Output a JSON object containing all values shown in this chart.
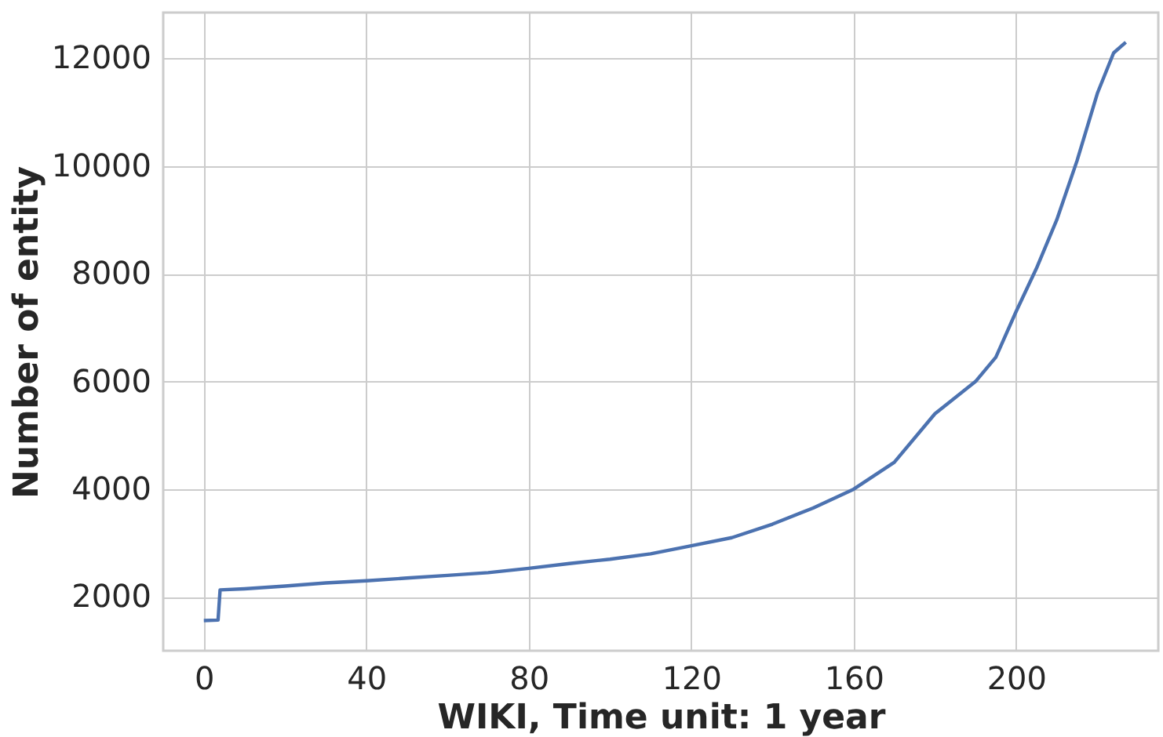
{
  "chart_data": {
    "type": "line",
    "xlabel": "WIKI, Time unit: 1 year",
    "ylabel": "Number of entity",
    "x": [
      0,
      3.5,
      4,
      10,
      20,
      30,
      40,
      50,
      60,
      70,
      80,
      90,
      100,
      110,
      120,
      130,
      140,
      150,
      160,
      170,
      180,
      190,
      195,
      200,
      205,
      210,
      215,
      220,
      224,
      227
    ],
    "series": [
      {
        "color": "#4c72b0",
        "values": [
          1560,
          1570,
          2130,
          2150,
          2200,
          2260,
          2300,
          2350,
          2400,
          2450,
          2530,
          2620,
          2700,
          2800,
          2950,
          3100,
          3350,
          3650,
          4000,
          4500,
          5400,
          6000,
          6450,
          7300,
          8100,
          9000,
          10100,
          11350,
          12100,
          12300
        ]
      }
    ],
    "xlim": [
      -10,
      235
    ],
    "ylim": [
      1000,
      12850
    ],
    "xticks": [
      0,
      40,
      80,
      120,
      160,
      200
    ],
    "yticks": [
      2000,
      4000,
      6000,
      8000,
      10000,
      12000
    ],
    "grid": true,
    "line_style": "solid"
  }
}
